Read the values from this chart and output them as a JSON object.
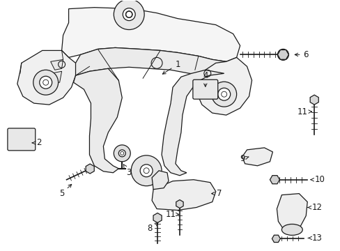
{
  "background_color": "#ffffff",
  "line_color": "#1a1a1a",
  "fig_width": 4.89,
  "fig_height": 3.6,
  "dpi": 100,
  "parts": {
    "main_frame_color": "#1a1a1a",
    "callout_fontsize": 8.5
  }
}
